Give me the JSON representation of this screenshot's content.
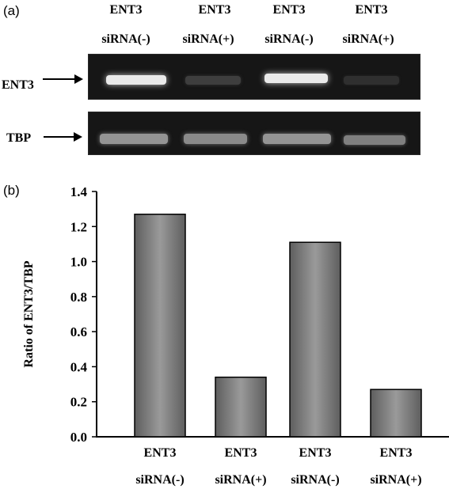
{
  "panel_a": {
    "label": "(a)",
    "lanes": [
      {
        "top": "ENT3",
        "bottom": "siRNA(-)"
      },
      {
        "top": "ENT3",
        "bottom": "siRNA(+)"
      },
      {
        "top": "ENT3",
        "bottom": "siRNA(-)"
      },
      {
        "top": "ENT3",
        "bottom": "siRNA(+)"
      }
    ],
    "rows": [
      {
        "label": "ENT3",
        "band_intensity": [
          0.95,
          0.15,
          0.95,
          0.08
        ]
      },
      {
        "label": "TBP",
        "band_intensity": [
          0.55,
          0.5,
          0.55,
          0.45
        ]
      }
    ]
  },
  "panel_b": {
    "label": "(b)"
  },
  "chart_data": {
    "type": "bar",
    "categories": [
      "ENT3 siRNA(-)",
      "ENT3 siRNA(+)",
      "ENT3 siRNA(-)",
      "ENT3 siRNA(+)"
    ],
    "category_lines": [
      [
        "ENT3",
        "siRNA(-)"
      ],
      [
        "ENT3",
        "siRNA(+)"
      ],
      [
        "ENT3",
        "siRNA(-)"
      ],
      [
        "ENT3",
        "siRNA(+)"
      ]
    ],
    "values": [
      1.27,
      0.34,
      1.11,
      0.27
    ],
    "ylabel": "Ratio of ENT3/TBP",
    "xlabel": "",
    "ylim": [
      0,
      1.4
    ],
    "yticks": [
      "0.0",
      "0.2",
      "0.4",
      "0.6",
      "0.8",
      "1.0",
      "1.2",
      "1.4"
    ],
    "grid": false,
    "bar_color": "#7a7a7a"
  }
}
